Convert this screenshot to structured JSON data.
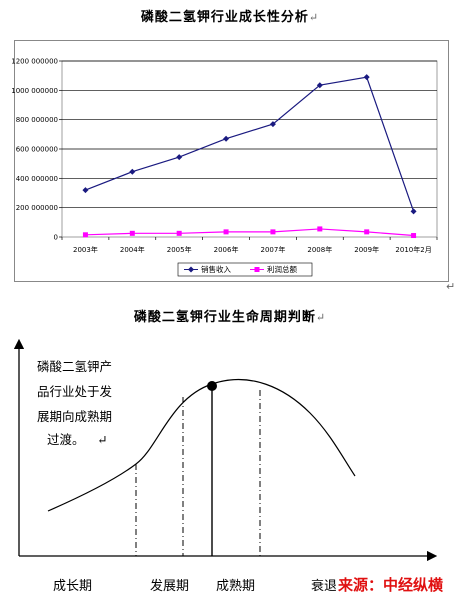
{
  "chart1": {
    "title": "磷酸二氢钾行业成长性分析",
    "chart_data": {
      "type": "line",
      "categories": [
        "2003年",
        "2004年",
        "2005年",
        "2006年",
        "2007年",
        "2008年",
        "2009年",
        "2010年2月"
      ],
      "series": [
        {
          "name": "销售收入",
          "color": "#1a1a80",
          "marker": "diamond",
          "values": [
            320000000,
            445000000,
            545000000,
            670000000,
            770000000,
            1035000000,
            1090000000,
            175000000
          ]
        },
        {
          "name": "利润总额",
          "color": "#ff00ff",
          "marker": "square",
          "values": [
            15000000,
            25000000,
            25000000,
            35000000,
            35000000,
            55000000,
            35000000,
            10000000
          ]
        }
      ],
      "y_ticks": [
        "0",
        "200 000000",
        "400 000000",
        "600 000000",
        "800 000000",
        "1000 000000",
        "1200 000000"
      ],
      "ylim": [
        0,
        1200000000
      ],
      "grid": true,
      "legend": "bottom-center"
    }
  },
  "chart2": {
    "title": "磷酸二氢钾行业生命周期判断",
    "description_lines": [
      "磷酸二氢钾产",
      "品行业处于发",
      "展期向成熟期",
      "过渡。"
    ],
    "stages": [
      "成长期",
      "发展期",
      "成熟期",
      "衰退期"
    ],
    "source": "来源：中经纵横"
  },
  "marks": {
    "paragraph": "↵"
  }
}
